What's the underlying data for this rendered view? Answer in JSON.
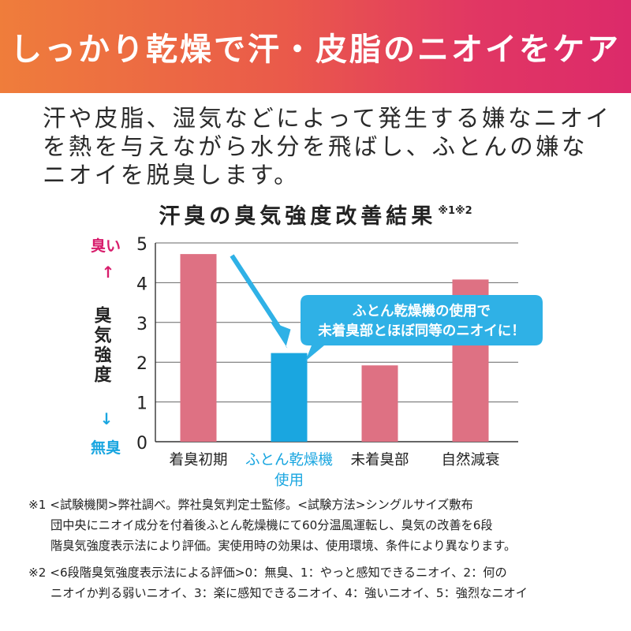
{
  "banner": {
    "title": "しっかり乾燥で汗・皮脂のニオイをケア"
  },
  "intro": {
    "lines": [
      "汗や皮脂、湿気などによって発生する嫌なニオイ",
      "を熱を与えながら水分を飛ばし、ふとんの嫌な",
      "ニオイを脱臭します。"
    ]
  },
  "chart_data": {
    "type": "bar",
    "title": "汗臭の臭気強度改善結果",
    "title_note": "※1※2",
    "ylabel": "臭気強度",
    "ylim": [
      0,
      5
    ],
    "yticks": [
      "0",
      "1",
      "2",
      "3",
      "4",
      "5"
    ],
    "y_top_label": "臭い",
    "y_bottom_label": "無臭",
    "y_top_arrow": "↑",
    "y_bottom_arrow": "↓",
    "categories": [
      "着臭初期",
      "ふとん乾燥機\n使用",
      "未着臭部",
      "自然減衰"
    ],
    "values": [
      4.72,
      2.23,
      1.92,
      4.08
    ],
    "colors": [
      "#de7183",
      "#1aa6e0",
      "#de7183",
      "#de7183"
    ],
    "highlight_index": 1,
    "callout": {
      "lines": [
        "ふとん乾燥機の使用で",
        "未着臭部とほぼ同等のニオイに！"
      ],
      "color": "#2fb1e6"
    },
    "grid": true
  },
  "colors": {
    "pink_accent": "#d81d6c",
    "blue_accent": "#1aa6e0",
    "bar_pink": "#de7183"
  },
  "footnotes": [
    {
      "mark": "※1",
      "lines": [
        "<試験機関>弊社調べ。弊社臭気判定士監修。<試験方法>シングルサイズ敷布",
        "団中央にニオイ成分を付着後ふとん乾燥機にて60分温風運転し、臭気の改善を6段",
        "階臭気強度表示法により評価。実使用時の効果は、使用環境、条件により異なります。"
      ]
    },
    {
      "mark": "※2",
      "lines": [
        "<6段階臭気強度表示法による評価>0：無臭、1：やっと感知できるニオイ、2：何の",
        "ニオイか判る弱いニオイ、3：楽に感知できるニオイ、4：強いニオイ、5：強烈なニオイ"
      ]
    }
  ]
}
